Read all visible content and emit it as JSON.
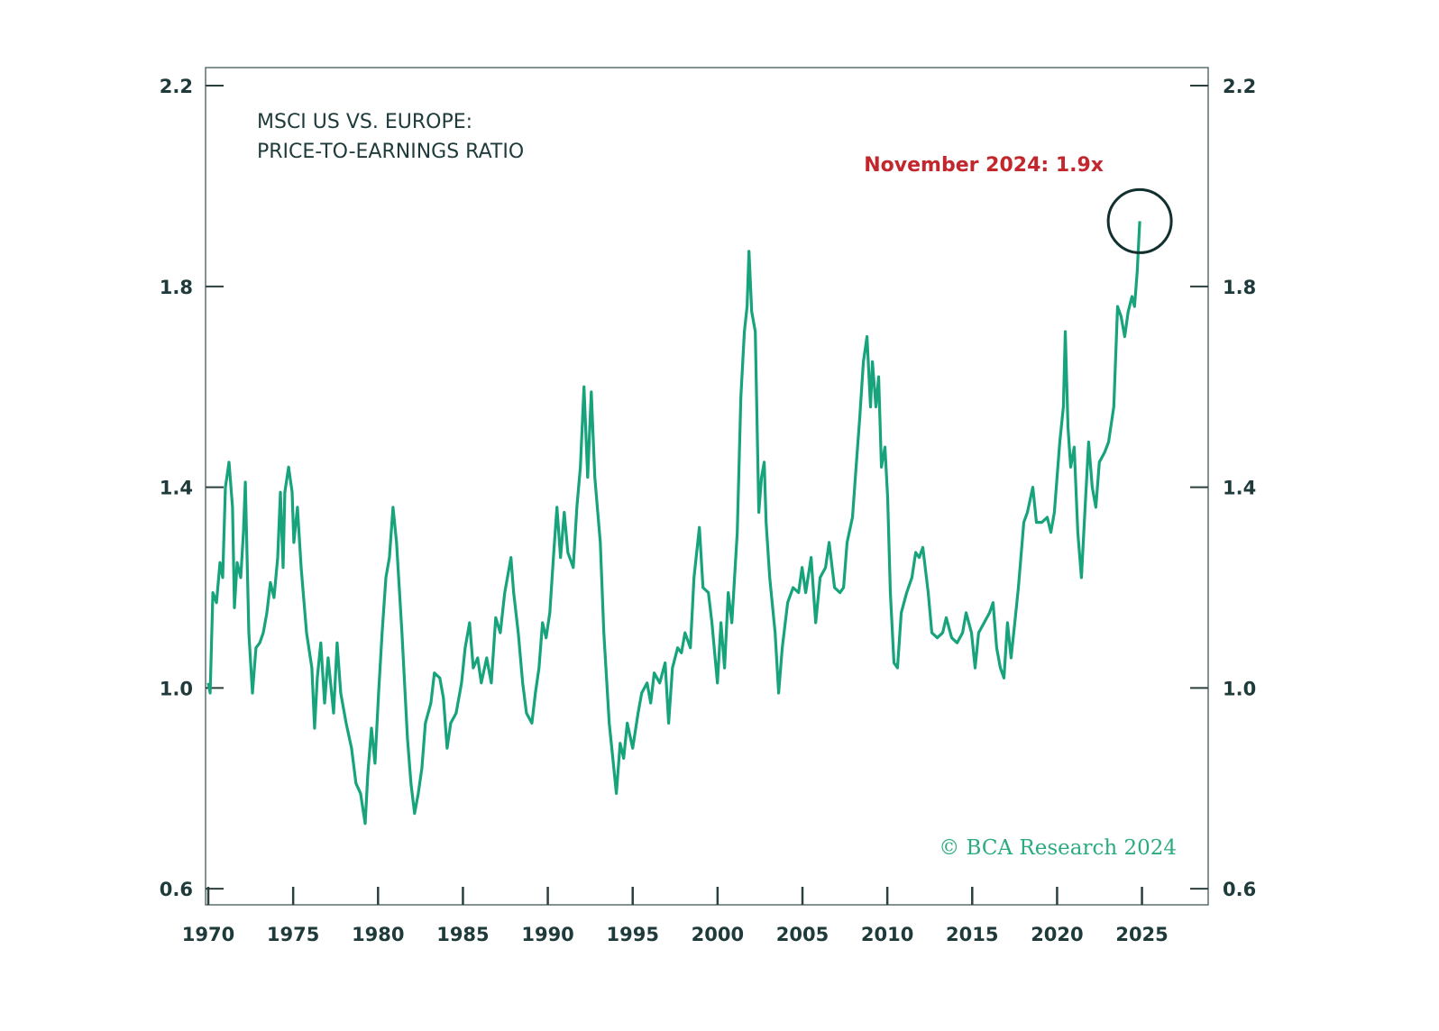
{
  "chart_data": {
    "type": "line",
    "title_lines": [
      "MSCI US VS. EUROPE:",
      "PRICE-TO-EARNINGS RATIO"
    ],
    "xlabel": "",
    "ylabel": "",
    "xlim": [
      1969.84,
      2028.9
    ],
    "ylim": [
      0.568,
      2.236
    ],
    "x_ticks": [
      1970,
      1975,
      1980,
      1985,
      1990,
      1995,
      2000,
      2005,
      2010,
      2015,
      2020,
      2025
    ],
    "x_tick_labels": [
      "1970",
      "1975",
      "1980",
      "1985",
      "1990",
      "1995",
      "2000",
      "2005",
      "2010",
      "2015",
      "2020",
      "2025"
    ],
    "y_ticks": [
      0.6,
      1.0,
      1.4,
      1.8,
      2.2
    ],
    "y_tick_labels": [
      "0.6",
      "1.0",
      "1.4",
      "1.8",
      "2.2"
    ],
    "grid": false,
    "legend": "none",
    "line_color": "#17a37b",
    "annotation": {
      "text": "November 2024: 1.9x",
      "x": 2024.87,
      "y": 1.93,
      "color": "#c1272d",
      "marker": "circle"
    },
    "copyright": "© BCA Research 2024",
    "copyright_color": "#2aab80",
    "series": [
      {
        "x": [
          1970.0,
          1970.11,
          1970.27,
          1970.48,
          1970.69,
          1970.85,
          1971.01,
          1971.22,
          1971.43,
          1971.54,
          1971.7,
          1971.91,
          1972.07,
          1972.18,
          1972.39,
          1972.6,
          1972.81,
          1973.03,
          1973.24,
          1973.45,
          1973.66,
          1973.87,
          1974.09,
          1974.25,
          1974.41,
          1974.51,
          1974.73,
          1974.94,
          1975.04,
          1975.25,
          1975.47,
          1975.79,
          1976.1,
          1976.26,
          1976.42,
          1976.63,
          1976.85,
          1977.06,
          1977.38,
          1977.59,
          1977.8,
          1978.12,
          1978.44,
          1978.7,
          1978.97,
          1979.24,
          1979.4,
          1979.61,
          1979.82,
          1980.03,
          1980.24,
          1980.46,
          1980.67,
          1980.88,
          1981.09,
          1981.41,
          1981.73,
          1981.94,
          1982.15,
          1982.37,
          1982.58,
          1982.79,
          1983.11,
          1983.32,
          1983.64,
          1983.85,
          1984.07,
          1984.28,
          1984.6,
          1984.92,
          1985.13,
          1985.39,
          1985.61,
          1985.87,
          1986.08,
          1986.4,
          1986.67,
          1986.93,
          1987.2,
          1987.46,
          1987.62,
          1987.83,
          1987.99,
          1988.26,
          1988.52,
          1988.74,
          1989.06,
          1989.27,
          1989.48,
          1989.69,
          1989.9,
          1990.12,
          1990.33,
          1990.54,
          1990.75,
          1990.97,
          1991.18,
          1991.5,
          1991.71,
          1991.92,
          1992.13,
          1992.35,
          1992.56,
          1992.77,
          1993.09,
          1993.3,
          1993.62,
          1993.83,
          1994.04,
          1994.26,
          1994.47,
          1994.68,
          1995.0,
          1995.32,
          1995.53,
          1995.85,
          1996.06,
          1996.27,
          1996.59,
          1996.91,
          1997.12,
          1997.34,
          1997.65,
          1997.87,
          1998.08,
          1998.4,
          1998.61,
          1998.93,
          1999.14,
          1999.46,
          1999.67,
          1999.99,
          2000.2,
          2000.41,
          2000.63,
          2000.84,
          2001.16,
          2001.37,
          2001.58,
          2001.74,
          2001.85,
          2002.01,
          2002.22,
          2002.43,
          2002.59,
          2002.75,
          2002.86,
          2003.07,
          2003.39,
          2003.6,
          2003.81,
          2004.13,
          2004.45,
          2004.77,
          2004.98,
          2005.19,
          2005.51,
          2005.78,
          2006.04,
          2006.36,
          2006.57,
          2006.89,
          2007.21,
          2007.42,
          2007.63,
          2007.95,
          2008.16,
          2008.38,
          2008.59,
          2008.8,
          2009.01,
          2009.12,
          2009.33,
          2009.49,
          2009.65,
          2009.86,
          2010.02,
          2010.18,
          2010.39,
          2010.6,
          2010.82,
          2011.14,
          2011.45,
          2011.67,
          2011.88,
          2012.09,
          2012.41,
          2012.62,
          2012.94,
          2013.26,
          2013.47,
          2013.79,
          2014.11,
          2014.43,
          2014.64,
          2014.96,
          2015.17,
          2015.38,
          2015.7,
          2016.02,
          2016.23,
          2016.44,
          2016.66,
          2016.87,
          2017.08,
          2017.29,
          2017.51,
          2017.72,
          2018.04,
          2018.25,
          2018.57,
          2018.78,
          2019.1,
          2019.42,
          2019.63,
          2019.84,
          2020.16,
          2020.37,
          2020.48,
          2020.64,
          2020.8,
          2021.01,
          2021.22,
          2021.43,
          2021.65,
          2021.86,
          2022.07,
          2022.28,
          2022.49,
          2022.81,
          2023.03,
          2023.34,
          2023.56,
          2023.77,
          2023.98,
          2024.19,
          2024.41,
          2024.56,
          2024.72,
          2024.87
        ],
        "y": [
          1.01,
          0.99,
          1.19,
          1.17,
          1.25,
          1.22,
          1.4,
          1.45,
          1.36,
          1.16,
          1.25,
          1.22,
          1.31,
          1.41,
          1.11,
          0.99,
          1.08,
          1.09,
          1.11,
          1.15,
          1.21,
          1.18,
          1.26,
          1.39,
          1.24,
          1.39,
          1.44,
          1.39,
          1.29,
          1.36,
          1.24,
          1.11,
          1.04,
          0.92,
          1.02,
          1.09,
          0.97,
          1.06,
          0.95,
          1.09,
          0.99,
          0.93,
          0.88,
          0.81,
          0.79,
          0.73,
          0.83,
          0.92,
          0.85,
          0.99,
          1.11,
          1.22,
          1.26,
          1.36,
          1.29,
          1.11,
          0.9,
          0.81,
          0.75,
          0.79,
          0.84,
          0.93,
          0.97,
          1.03,
          1.02,
          0.98,
          0.88,
          0.93,
          0.95,
          1.01,
          1.08,
          1.13,
          1.04,
          1.06,
          1.01,
          1.06,
          1.01,
          1.14,
          1.11,
          1.19,
          1.22,
          1.26,
          1.19,
          1.11,
          1.01,
          0.95,
          0.93,
          0.99,
          1.04,
          1.13,
          1.1,
          1.15,
          1.26,
          1.36,
          1.26,
          1.35,
          1.27,
          1.24,
          1.36,
          1.44,
          1.6,
          1.42,
          1.59,
          1.42,
          1.29,
          1.11,
          0.93,
          0.86,
          0.79,
          0.89,
          0.86,
          0.93,
          0.88,
          0.95,
          0.99,
          1.01,
          0.97,
          1.03,
          1.01,
          1.05,
          0.93,
          1.04,
          1.08,
          1.07,
          1.11,
          1.08,
          1.22,
          1.32,
          1.2,
          1.19,
          1.13,
          1.01,
          1.13,
          1.04,
          1.19,
          1.13,
          1.31,
          1.58,
          1.71,
          1.76,
          1.87,
          1.75,
          1.71,
          1.35,
          1.42,
          1.45,
          1.33,
          1.22,
          1.11,
          0.99,
          1.08,
          1.17,
          1.2,
          1.19,
          1.24,
          1.19,
          1.26,
          1.13,
          1.22,
          1.24,
          1.29,
          1.2,
          1.19,
          1.2,
          1.29,
          1.34,
          1.44,
          1.54,
          1.65,
          1.7,
          1.56,
          1.65,
          1.56,
          1.62,
          1.44,
          1.48,
          1.38,
          1.19,
          1.05,
          1.04,
          1.15,
          1.19,
          1.22,
          1.27,
          1.26,
          1.28,
          1.19,
          1.11,
          1.1,
          1.11,
          1.14,
          1.1,
          1.09,
          1.11,
          1.15,
          1.11,
          1.04,
          1.11,
          1.13,
          1.15,
          1.17,
          1.08,
          1.04,
          1.02,
          1.13,
          1.06,
          1.13,
          1.2,
          1.33,
          1.35,
          1.4,
          1.33,
          1.33,
          1.34,
          1.31,
          1.35,
          1.49,
          1.56,
          1.71,
          1.52,
          1.44,
          1.48,
          1.31,
          1.22,
          1.36,
          1.49,
          1.4,
          1.36,
          1.45,
          1.47,
          1.49,
          1.56,
          1.76,
          1.74,
          1.7,
          1.75,
          1.78,
          1.76,
          1.83,
          1.93
        ]
      }
    ]
  }
}
